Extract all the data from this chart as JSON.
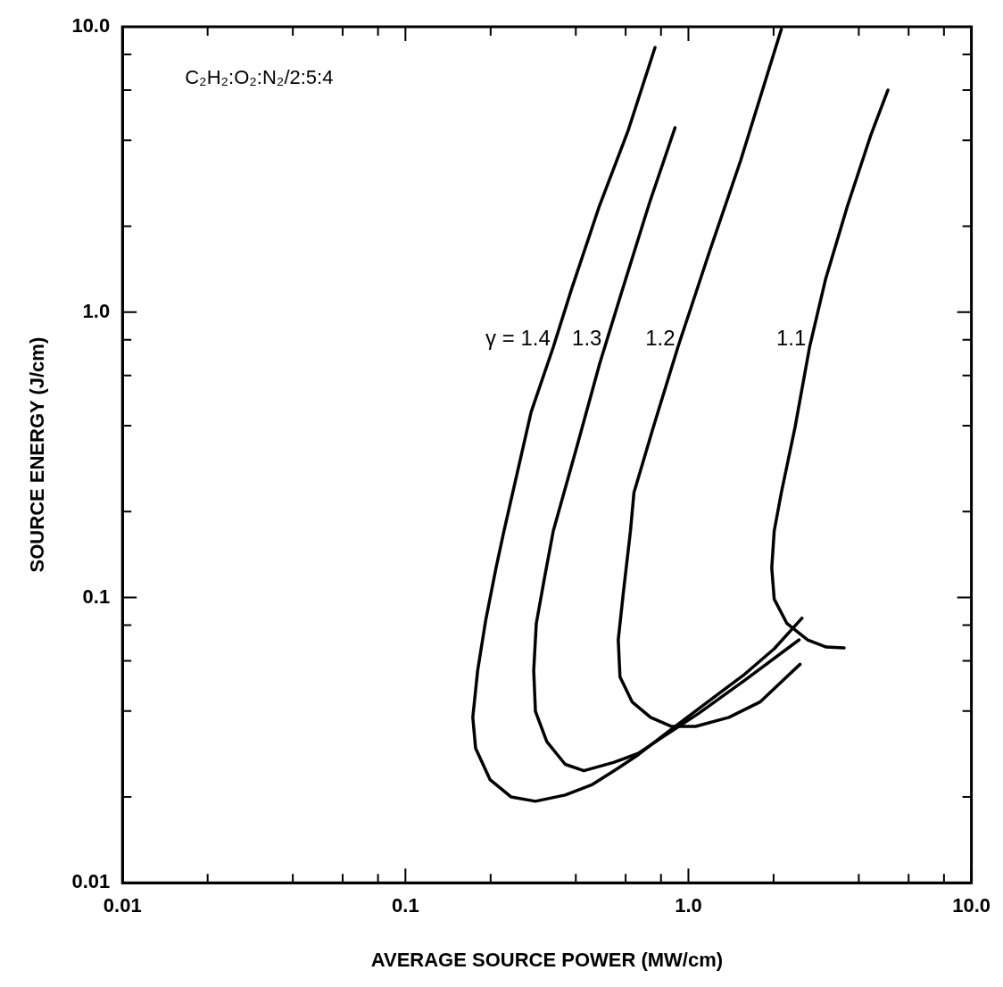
{
  "chart_data": {
    "type": "line",
    "xlabel": "AVERAGE SOURCE POWER (MW/cm)",
    "ylabel": "SOURCE ENERGY (J/cm)",
    "log": "xy",
    "grid": false,
    "legend": false,
    "marker": "none",
    "line_style": "solid",
    "xlim": [
      0.01,
      10
    ],
    "ylim": [
      0.01,
      10
    ],
    "xticks": [
      0.01,
      {
        "value": 0.02,
        "label": null
      },
      {
        "value": 0.04,
        "label": null
      },
      {
        "value": 0.06,
        "label": null
      },
      {
        "value": 0.08,
        "label": null
      },
      0.1,
      {
        "value": 0.2,
        "label": null
      },
      {
        "value": 0.4,
        "label": null
      },
      {
        "value": 0.6,
        "label": null
      },
      {
        "value": 0.8,
        "label": null
      },
      {
        "value": 1,
        "label": "1.0"
      },
      {
        "value": 2,
        "label": null
      },
      {
        "value": 4,
        "label": null
      },
      {
        "value": 6,
        "label": null
      },
      {
        "value": 8,
        "label": null
      },
      {
        "value": 10,
        "label": "10.0"
      }
    ],
    "yticks": [
      0.01,
      {
        "value": 0.02,
        "label": null
      },
      {
        "value": 0.04,
        "label": null
      },
      {
        "value": 0.06,
        "label": null
      },
      {
        "value": 0.08,
        "label": null
      },
      0.1,
      {
        "value": 0.2,
        "label": null
      },
      {
        "value": 0.4,
        "label": null
      },
      {
        "value": 0.6,
        "label": null
      },
      {
        "value": 0.8,
        "label": null
      },
      {
        "value": 1,
        "label": "1.0"
      },
      {
        "value": 2,
        "label": null
      },
      {
        "value": 4,
        "label": null
      },
      {
        "value": 6,
        "label": null
      },
      {
        "value": 8,
        "label": null
      },
      {
        "value": 10,
        "label": "10.0"
      }
    ],
    "series": [
      {
        "name": "γ = 1.4",
        "color": "#000000",
        "x": [
          0.762,
          0.611,
          0.485,
          0.386,
          0.333,
          0.278,
          0.223,
          0.209,
          0.192,
          0.18,
          0.173,
          0.177,
          0.199,
          0.236,
          0.288,
          0.367,
          0.458,
          0.56,
          0.665,
          0.807,
          1.09,
          1.58,
          2.01,
          2.52
        ],
        "values": [
          8.46,
          4.3,
          2.36,
          1.2,
          0.754,
          0.446,
          0.171,
          0.127,
          0.0828,
          0.0555,
          0.038,
          0.0296,
          0.023,
          0.02,
          0.0193,
          0.0203,
          0.0221,
          0.0251,
          0.0281,
          0.0326,
          0.0408,
          0.0538,
          0.0661,
          0.0846
        ]
      },
      {
        "name": "1.3",
        "color": "#000000",
        "x": [
          0.897,
          0.73,
          0.58,
          0.486,
          0.406,
          0.333,
          0.31,
          0.29,
          0.284,
          0.288,
          0.316,
          0.367,
          0.427,
          0.544,
          0.665,
          0.807,
          1.09,
          1.58,
          2.46
        ],
        "values": [
          4.43,
          2.43,
          1.17,
          0.661,
          0.345,
          0.171,
          0.117,
          0.081,
          0.0554,
          0.0399,
          0.0312,
          0.026,
          0.0247,
          0.0264,
          0.0284,
          0.0323,
          0.0393,
          0.0512,
          0.071
        ]
      },
      {
        "name": "1.2",
        "color": "#000000",
        "x": [
          2.13,
          1.53,
          1.19,
          0.918,
          0.751,
          0.642,
          0.624,
          0.589,
          0.565,
          0.573,
          0.633,
          0.735,
          0.873,
          1.06,
          1.39,
          1.79,
          2.48
        ],
        "values": [
          9.8,
          3.4,
          1.64,
          0.754,
          0.394,
          0.233,
          0.171,
          0.104,
          0.071,
          0.0527,
          0.043,
          0.038,
          0.0353,
          0.0353,
          0.038,
          0.043,
          0.0583
        ]
      },
      {
        "name": "1.1",
        "color": "#000000",
        "x": [
          5.07,
          4.4,
          3.65,
          3.05,
          2.68,
          2.38,
          2.13,
          2.01,
          1.97,
          2.01,
          2.23,
          2.64,
          3.07,
          3.55
        ],
        "values": [
          6.0,
          4.14,
          2.36,
          1.3,
          0.754,
          0.394,
          0.233,
          0.171,
          0.127,
          0.0986,
          0.081,
          0.071,
          0.067,
          0.0665
        ]
      }
    ],
    "annotations": [
      "C₂H₂:O₂:N₂/2:5:4"
    ]
  }
}
